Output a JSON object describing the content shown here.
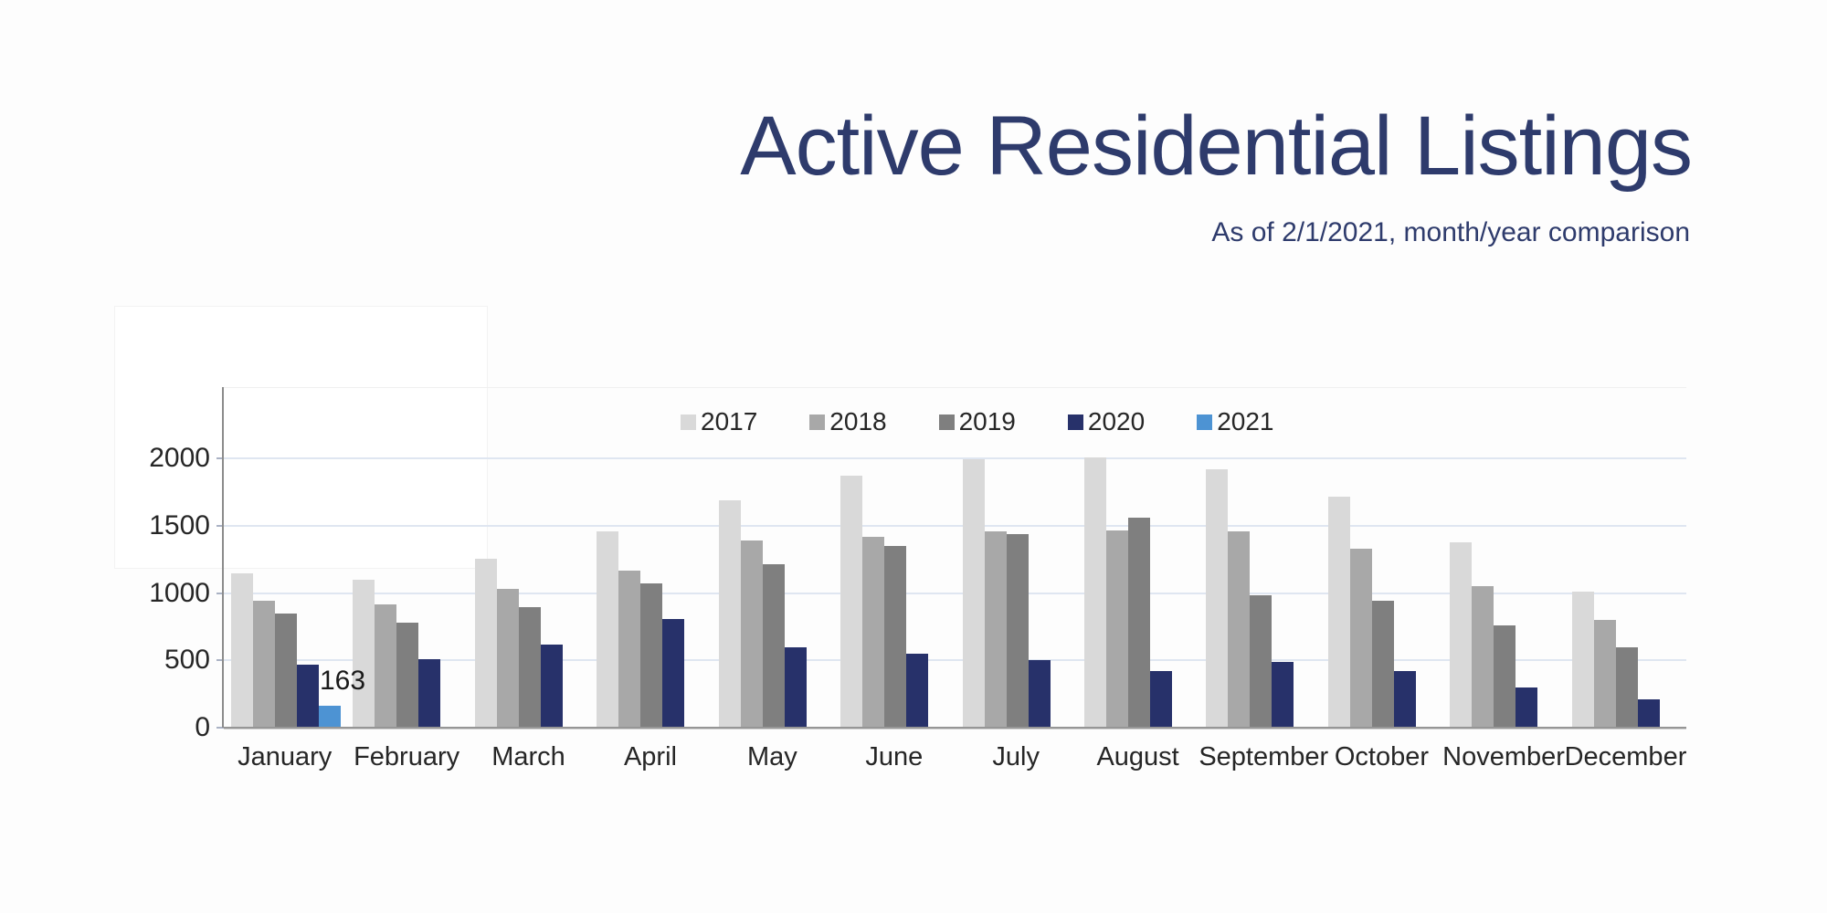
{
  "chart_data": {
    "type": "bar",
    "title": "Active Residential Listings",
    "subtitle": "As of 2/1/2021, month/year comparison",
    "categories": [
      "January",
      "February",
      "March",
      "April",
      "May",
      "June",
      "July",
      "August",
      "September",
      "October",
      "November",
      "December"
    ],
    "series": [
      {
        "name": "2017",
        "color": "#d9d9d9",
        "values": [
          1145,
          1096,
          1255,
          1460,
          1687,
          1870,
          1990,
          2005,
          1922,
          1714,
          1373,
          1011
        ]
      },
      {
        "name": "2018",
        "color": "#a8a8a8",
        "values": [
          940,
          916,
          1030,
          1167,
          1391,
          1416,
          1459,
          1467,
          1459,
          1330,
          1054,
          798
        ]
      },
      {
        "name": "2019",
        "color": "#7f7f7f",
        "values": [
          848,
          780,
          893,
          1074,
          1214,
          1348,
          1436,
          1557,
          984,
          939,
          758,
          595
        ]
      },
      {
        "name": "2020",
        "color": "#27316a",
        "values": [
          465,
          510,
          620,
          805,
          600,
          550,
          505,
          418,
          486,
          418,
          298,
          208
        ]
      },
      {
        "name": "2021",
        "color": "#4d93d3",
        "values": [
          163,
          null,
          null,
          null,
          null,
          null,
          null,
          null,
          null,
          null,
          null,
          null
        ]
      }
    ],
    "data_labels": [
      {
        "series": "2021",
        "category": "January",
        "text": "163"
      }
    ],
    "yticks": [
      0,
      500,
      1000,
      1500,
      2000
    ],
    "ylim": [
      0,
      2455
    ],
    "grid": true,
    "legend_position": "top-center",
    "colors": {
      "title_text": "#2e3b6c",
      "subtitle_text": "#2e3b6c",
      "gridline": "#dfe6f1",
      "axis_line": "#8c8c8c",
      "tick_text": "#262626",
      "data_label_text": "#1a1a1a"
    }
  }
}
